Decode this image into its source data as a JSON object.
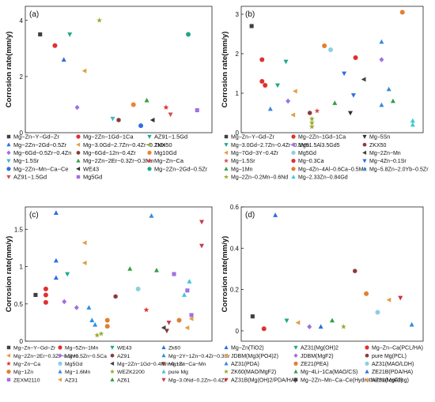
{
  "chart_data": [
    {
      "panel": "(a)",
      "type": "scatter",
      "ylabel": "Corrosion rate(mm/y)",
      "ylim": [
        0,
        4.5
      ],
      "yticks": [
        0,
        2,
        4
      ],
      "legend_cols": 3,
      "legend_font": 7.4,
      "series": [
        {
          "name": "Mg−Zn−Y−Gd−Zr",
          "color": "#404040",
          "marker": "square",
          "x": [
            1
          ],
          "y": [
            3.5
          ]
        },
        {
          "name": "Mg−2Zn−1Gd−1Ca",
          "color": "#e03030",
          "marker": "circle",
          "x": [
            2
          ],
          "y": [
            3.1
          ]
        },
        {
          "name": "AZ91−1.5Gd",
          "color": "#1fa88a",
          "marker": "triangle-down",
          "x": [
            3
          ],
          "y": [
            3.5
          ]
        },
        {
          "name": "Mg−2Zn−2Gd−0.5Zr",
          "color": "#2f6fe0",
          "marker": "triangle",
          "x": [
            2.6
          ],
          "y": [
            2.6
          ]
        },
        {
          "name": "Mg−3.0Gd−2.7Zn−0.4Zr−0.1Mn",
          "color": "#e0a040",
          "marker": "triangle-left",
          "x": [
            4
          ],
          "y": [
            2.2
          ]
        },
        {
          "name": "ZKX50",
          "color": "#9aaa30",
          "marker": "star",
          "x": [
            5
          ],
          "y": [
            4.0
          ]
        },
        {
          "name": "Mg−6Gd−0.5Zr−0.4Zn",
          "color": "#a070e0",
          "marker": "diamond",
          "x": [
            3.5
          ],
          "y": [
            0.9
          ]
        },
        {
          "name": "Mg−6Gd−12n−0.4Zr",
          "color": "#8b3a3a",
          "marker": "hexagon",
          "x": [
            6.3
          ],
          "y": [
            0.45
          ]
        },
        {
          "name": "Mg10Gd",
          "color": "#f08030",
          "marker": "circle",
          "x": [
            7.3
          ],
          "y": [
            1.0
          ]
        },
        {
          "name": "Mg−1.5Sr",
          "color": "#40b8d0",
          "marker": "triangle-down",
          "x": [
            5.9
          ],
          "y": [
            0.5
          ]
        },
        {
          "name": "Mg−2Zn−2Er−0.3Zr−0.3Mn",
          "color": "#30a040",
          "marker": "triangle",
          "x": [
            8.2
          ],
          "y": [
            1.15
          ]
        },
        {
          "name": "Mg−Zn−Ca",
          "color": "#e03030",
          "marker": "star",
          "x": [
            9.5
          ],
          "y": [
            0.9
          ]
        },
        {
          "name": "Mg−2Zn−Mn−Ca−Ce",
          "color": "#2f6fe0",
          "marker": "circle",
          "x": [
            7.8
          ],
          "y": [
            0.25
          ]
        },
        {
          "name": "WE43",
          "color": "#303030",
          "marker": "triangle-left",
          "x": [
            8.6
          ],
          "y": [
            0.45
          ]
        },
        {
          "name": "Mg−2Zn−2Gd−0.5Zr",
          "color": "#1fa88a",
          "marker": "circle",
          "x": [
            11
          ],
          "y": [
            3.5
          ]
        },
        {
          "name": "AZ91−1.5Gd",
          "color": "#d05050",
          "marker": "triangle-down",
          "x": [
            9.8
          ],
          "y": [
            0.65
          ]
        },
        {
          "name": "Mg5Gd",
          "color": "#a070e0",
          "marker": "square",
          "x": [
            11.6
          ],
          "y": [
            0.8
          ]
        }
      ]
    },
    {
      "panel": "(b)",
      "type": "scatter",
      "ylabel": "Corrosion rate(mm/y)",
      "ylim": [
        0,
        3.2
      ],
      "yticks": [
        0,
        1,
        2,
        3
      ],
      "legend_cols": 3,
      "legend_font": 7.0,
      "series": [
        {
          "name": "Mg−Zn−Y−Gd−Zr",
          "color": "#404040",
          "marker": "square",
          "x": [
            1
          ],
          "y": [
            2.7
          ]
        },
        {
          "name": "Mg−2Zn−1Gd−1Ca",
          "color": "#e03030",
          "marker": "circle",
          "x": [
            2,
            2
          ],
          "y": [
            1.85,
            1.3
          ]
        },
        {
          "name": "Mg−5Sn",
          "color": "#303030",
          "marker": "triangle-down",
          "x": [
            10.5
          ],
          "y": [
            0.5
          ]
        },
        {
          "name": "Mg−3.0Gd−2.7Zn−0.4Zr−0.1Mn",
          "color": "#1fa88a",
          "marker": "triangle-down",
          "x": [
            3.5,
            4.3
          ],
          "y": [
            1.2,
            1.8
          ]
        },
        {
          "name": "Mg91.5Al3.5Gd5",
          "color": "#a070e0",
          "marker": "diamond",
          "x": [
            4.5,
            13.5
          ],
          "y": [
            0.8,
            1.85
          ]
        },
        {
          "name": "ZKX50",
          "color": "#8b3a3a",
          "marker": "hexagon",
          "x": [
            6.6
          ],
          "y": [
            0.5
          ]
        },
        {
          "name": "Mg−7Gd−3Y−0.4Zr",
          "color": "#e0a040",
          "marker": "triangle-left",
          "x": [
            5.2,
            5.0
          ],
          "y": [
            1.05,
            0.45
          ]
        },
        {
          "name": "Mg5Gd",
          "color": "#8ad0e0",
          "marker": "circle",
          "x": [
            8.6
          ],
          "y": [
            2.1
          ]
        },
        {
          "name": "Mg−2Zn−Mn",
          "color": "#404040",
          "marker": "triangle-left",
          "x": [
            11.8
          ],
          "y": [
            1.35
          ]
        },
        {
          "name": "Mg−1.5Sr",
          "color": "#d05050",
          "marker": "star",
          "x": [
            7.3
          ],
          "y": [
            0.55
          ]
        },
        {
          "name": "Mg−0.3Ca",
          "color": "#e03030",
          "marker": "circle",
          "x": [
            2.3,
            11.0
          ],
          "y": [
            1.2,
            1.9
          ]
        },
        {
          "name": "Mg−4Zn−0.1Sr",
          "color": "#2f6fe0",
          "marker": "triangle-down",
          "x": [
            9.9,
            10.8
          ],
          "y": [
            1.5,
            0.95
          ]
        },
        {
          "name": "Mg−1Mn",
          "color": "#30a040",
          "marker": "triangle",
          "x": [
            9.0,
            14.6
          ],
          "y": [
            0.75,
            0.8
          ]
        },
        {
          "name": "Mg−4Zn−4Al−0.6Ca−0.5Mn",
          "color": "#e08030",
          "marker": "circle",
          "x": [
            8.0,
            15.5
          ],
          "y": [
            2.2,
            3.05
          ]
        },
        {
          "name": "Mg−5.8Zn−2.0Yb−0.5Zr",
          "color": "#3a8ad8",
          "marker": "triangle",
          "x": [
            2.8,
            13.5,
            14.2,
            13.5
          ],
          "y": [
            0.6,
            2.3,
            1.1,
            0.7
          ]
        },
        {
          "name": "Mg−2Zn−0.2Mn−0.6Nd",
          "color": "#9aaa30",
          "marker": "star",
          "x": [
            6.8,
            6.8,
            6.8
          ],
          "y": [
            0.15,
            0.25,
            0.35
          ]
        },
        {
          "name": "Mg−2.33Zn−0.84Gd",
          "color": "#40c8d8",
          "marker": "triangle",
          "x": [
            16.5,
            16.5
          ],
          "y": [
            0.2,
            0.3
          ]
        }
      ]
    },
    {
      "panel": "(c)",
      "type": "scatter",
      "ylabel": "Corrosion rate(mm/y)",
      "ylim": [
        0,
        1.8
      ],
      "yticks": [
        0,
        0.5,
        1,
        1.5
      ],
      "legend_cols": 4,
      "legend_font": 6.8,
      "series": [
        {
          "name": "Mg−Zn−Y−Gd−Zr",
          "color": "#404040",
          "marker": "square",
          "x": [
            1
          ],
          "y": [
            0.62
          ]
        },
        {
          "name": "Mg−5Zn−1Mn",
          "color": "#e03030",
          "marker": "circle",
          "x": [
            2,
            2,
            2
          ],
          "y": [
            0.7,
            0.62,
            0.52
          ]
        },
        {
          "name": "WE43",
          "color": "#1fa88a",
          "marker": "triangle-down",
          "x": [
            4.1
          ],
          "y": [
            0.9
          ]
        },
        {
          "name": "Zk60",
          "color": "#2f6fe0",
          "marker": "triangle",
          "x": [
            3.0,
            3.0,
            3.0
          ],
          "y": [
            1.72,
            1.08,
            0.85
          ]
        },
        {
          "name": "Mg−2Zn−2Er−0.3Zr−0.3Mn",
          "color": "#e0a040",
          "marker": "triangle-left",
          "x": [
            5.8,
            5.8
          ],
          "y": [
            1.32,
            1.05
          ]
        },
        {
          "name": "Mg−0.5Zn−0.5Ca",
          "color": "#a070e0",
          "marker": "diamond",
          "x": [
            3.8,
            5.0
          ],
          "y": [
            0.53,
            0.45
          ]
        },
        {
          "name": "AZ91",
          "color": "#8b3a3a",
          "marker": "hexagon",
          "x": [
            8.8
          ],
          "y": [
            0.6
          ]
        },
        {
          "name": "Mg−2Y−1Zn−0.4Zr−0.3Sr",
          "color": "#2e8fe0",
          "marker": "triangle",
          "x": [
            6.2,
            6.5,
            6.8
          ],
          "y": [
            0.45,
            0.28,
            0.22
          ]
        },
        {
          "name": "Mg−Zn−Ca",
          "color": "#e03030",
          "marker": "star",
          "x": [
            11.8
          ],
          "y": [
            0.42
          ]
        },
        {
          "name": "Mg5Gd",
          "color": "#8ad0e0",
          "marker": "circle",
          "x": [
            11.0
          ],
          "y": [
            0.7
          ]
        },
        {
          "name": "Mg−2Zn−1Gd−0.4Mn−0.1Sr",
          "color": "#404040",
          "marker": "triangle-left",
          "x": [
            13.5
          ],
          "y": [
            0.18
          ]
        },
        {
          "name": "Mg−Zn−Ca−Mn",
          "color": "#8b3a3a",
          "marker": "triangle-down",
          "x": [
            13.8
          ],
          "y": [
            0.14
          ]
        },
        {
          "name": "Mg−1Zn",
          "color": "#e08030",
          "marker": "circle",
          "x": [
            8.0,
            8.0,
            15.0
          ],
          "y": [
            0.28,
            0.2,
            0.28
          ]
        },
        {
          "name": "Mg−1.6Mn",
          "color": "#3a8ad8",
          "marker": "triangle",
          "x": [
            12.3
          ],
          "y": [
            1.68
          ]
        },
        {
          "name": "WEZK2200",
          "color": "#9aaa30",
          "marker": "star",
          "x": [
            7.0,
            7.4
          ],
          "y": [
            0.08,
            0.1
          ]
        },
        {
          "name": "pure Mg",
          "color": "#40c8d8",
          "marker": "triangle",
          "x": [
            16.0,
            15.5
          ],
          "y": [
            0.8,
            0.62
          ]
        },
        {
          "name": "ZEXM2110",
          "color": "#a070e0",
          "marker": "square",
          "x": [
            14.5,
            15.8,
            16.2
          ],
          "y": [
            0.9,
            0.68,
            0.35
          ]
        },
        {
          "name": "AZ31",
          "color": "#e0a040",
          "marker": "triangle-left",
          "x": [
            15.8,
            16.2
          ],
          "y": [
            0.18,
            0.3
          ]
        },
        {
          "name": "AZ61",
          "color": "#30a040",
          "marker": "triangle",
          "x": [
            12.8,
            10.2
          ],
          "y": [
            0.95,
            0.97
          ]
        },
        {
          "name": "Mg−3.0Nd−0.2Zn−0.4Zr",
          "color": "#c04050",
          "marker": "triangle-down",
          "x": [
            17.2,
            17.2,
            14.0
          ],
          "y": [
            1.6,
            1.28,
            0.25
          ]
        }
      ]
    },
    {
      "panel": "(d)",
      "type": "scatter",
      "ylabel": "Corrosion rate(mm/y)",
      "ylim": [
        -0.05,
        0.6
      ],
      "yticks": [
        0,
        0.2,
        0.4,
        0.6
      ],
      "legend_cols": 3,
      "legend_font": 7.0,
      "series": [
        {
          "name": "Mg−Zn(TiO2)",
          "color": "#2f6fe0",
          "marker": "triangle",
          "x": [
            3
          ],
          "y": [
            0.56
          ]
        },
        {
          "name": "AZ31(Mg(OH)2",
          "color": "#1fa88a",
          "marker": "triangle-down",
          "x": [
            4
          ],
          "y": [
            0.05
          ]
        },
        {
          "name": "Mg−Zn−Ca(PCL/HA)",
          "color": "#e03030",
          "marker": "circle",
          "x": [
            2
          ],
          "y": [
            0.01
          ]
        },
        {
          "name": "JDBM(Mg3(PO4)2)",
          "color": "#e0a040",
          "marker": "triangle-left",
          "x": [
            5
          ],
          "y": [
            0.04
          ]
        },
        {
          "name": "JDBM(MgF2)",
          "color": "#a070e0",
          "marker": "diamond",
          "x": [
            6
          ],
          "y": [
            0.02
          ]
        },
        {
          "name": "pure Mg(PCL)",
          "color": "#8b3a3a",
          "marker": "hexagon",
          "x": [
            10
          ],
          "y": [
            0.29
          ]
        },
        {
          "name": "AZ31(PDA)",
          "color": "#3a8ad8",
          "marker": "triangle",
          "x": [
            15
          ],
          "y": [
            0.03
          ]
        },
        {
          "name": "ZE21(PEA)",
          "color": "#e08030",
          "marker": "circle",
          "x": [
            11
          ],
          "y": [
            0.18
          ]
        },
        {
          "name": "AZ31(MAO/LDH)",
          "color": "#8ad0e0",
          "marker": "circle",
          "x": [
            12
          ],
          "y": [
            0.09
          ]
        },
        {
          "name": "ZK60(MAO/MgF2)",
          "color": "#9aaa30",
          "marker": "star",
          "x": [
            9
          ],
          "y": [
            0.02
          ]
        },
        {
          "name": "Mg−4Li−1Ca(MAO/CS)",
          "color": "#30a040",
          "marker": "triangle",
          "x": [
            8
          ],
          "y": [
            0.05
          ]
        },
        {
          "name": "ZE21B(PDA/HA)",
          "color": "#2f6fe0",
          "marker": "triangle",
          "x": [
            7
          ],
          "y": [
            0.02
          ]
        },
        {
          "name": "AZ31B(Mg(OH)2/PDA/HA)",
          "color": "#d03040",
          "marker": "triangle-down",
          "x": [
            14
          ],
          "y": [
            0.16
          ]
        },
        {
          "name": "Mg−2Zn−Mn−Ca−Ce(Hydrothermal coating)",
          "color": "#404040",
          "marker": "square",
          "x": [
            1
          ],
          "y": [
            0.07
          ]
        },
        {
          "name": "AZ31(MgF2)",
          "color": "#e0a040",
          "marker": "triangle-left",
          "x": [
            13
          ],
          "y": [
            0.15
          ]
        }
      ]
    }
  ]
}
